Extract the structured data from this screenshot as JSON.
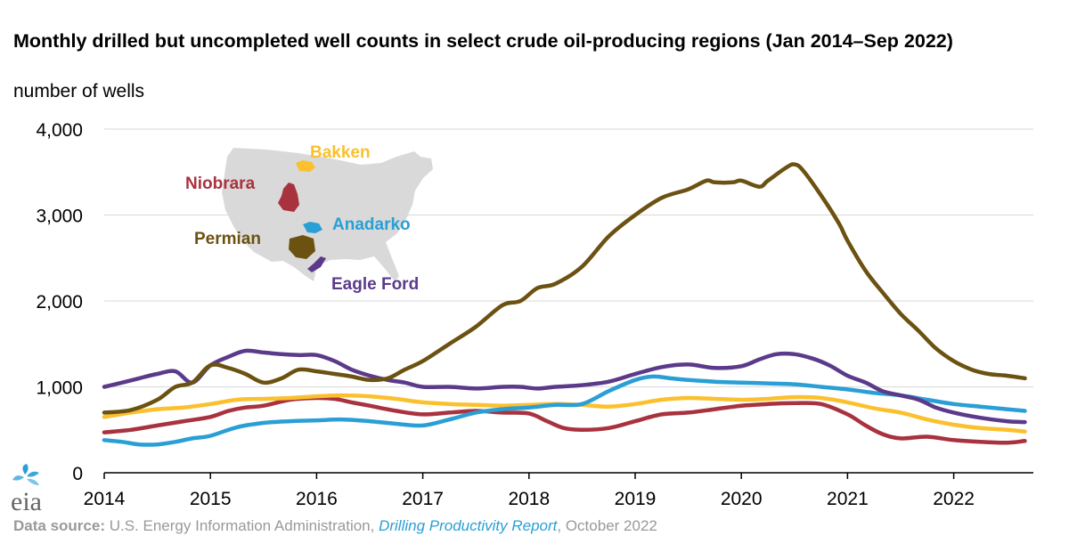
{
  "title": "Monthly drilled but uncompleted well counts in select crude oil-producing regions (Jan 2014–Sep 2022)",
  "unit_label": "number of wells",
  "source": {
    "label": "Data source:",
    "agency": "U.S. Energy Information Administration,",
    "report": "Drilling Productivity Report",
    "date": ", October 2022"
  },
  "logo_text": "eia",
  "colors": {
    "Permian": "#6b5211",
    "Eagle Ford": "#5b3a8a",
    "Bakken": "#fbc02d",
    "Anadarko": "#2a9fd6",
    "Niobrara": "#a8323e",
    "map_land": "#d9d9d9",
    "grid": "#d9d9d9"
  },
  "chart_data": {
    "type": "line",
    "title": "Monthly drilled but uncompleted well counts in select crude oil-producing regions (Jan 2014–Sep 2022)",
    "ylabel": "number of wells",
    "xlabel": "",
    "ylim": [
      0,
      4000
    ],
    "yticks": [
      0,
      1000,
      2000,
      3000,
      4000
    ],
    "ytick_labels": [
      "0",
      "1,000",
      "2,000",
      "3,000",
      "4,000"
    ],
    "xlim": [
      2014,
      2022.75
    ],
    "xticks": [
      2014,
      2015,
      2016,
      2017,
      2018,
      2019,
      2020,
      2021,
      2022
    ],
    "xtick_labels": [
      "2014",
      "2015",
      "2016",
      "2017",
      "2018",
      "2019",
      "2020",
      "2021",
      "2022"
    ],
    "grid": true,
    "legend": "inset map (top-left) with region labels",
    "series": [
      {
        "name": "Permian",
        "x": [
          2014.0,
          2014.25,
          2014.5,
          2014.67,
          2014.83,
          2015.0,
          2015.17,
          2015.33,
          2015.5,
          2015.67,
          2015.83,
          2016.0,
          2016.17,
          2016.33,
          2016.5,
          2016.67,
          2016.83,
          2017.0,
          2017.25,
          2017.5,
          2017.75,
          2017.92,
          2018.08,
          2018.25,
          2018.5,
          2018.75,
          2019.0,
          2019.25,
          2019.5,
          2019.67,
          2019.75,
          2019.92,
          2020.0,
          2020.17,
          2020.25,
          2020.42,
          2020.5,
          2020.58,
          2020.75,
          2020.92,
          2021.0,
          2021.17,
          2021.33,
          2021.5,
          2021.67,
          2021.83,
          2022.0,
          2022.17,
          2022.33,
          2022.5,
          2022.67
        ],
        "values": [
          700,
          730,
          850,
          1000,
          1050,
          1250,
          1220,
          1150,
          1050,
          1100,
          1200,
          1180,
          1150,
          1120,
          1080,
          1100,
          1200,
          1300,
          1500,
          1700,
          1950,
          2000,
          2150,
          2200,
          2400,
          2750,
          3000,
          3200,
          3300,
          3400,
          3380,
          3380,
          3400,
          3330,
          3400,
          3550,
          3590,
          3520,
          3230,
          2900,
          2700,
          2350,
          2100,
          1850,
          1650,
          1450,
          1300,
          1200,
          1150,
          1130,
          1100
        ]
      },
      {
        "name": "Eagle Ford",
        "x": [
          2014.0,
          2014.17,
          2014.33,
          2014.5,
          2014.67,
          2014.83,
          2015.0,
          2015.17,
          2015.33,
          2015.5,
          2015.67,
          2015.83,
          2016.0,
          2016.17,
          2016.33,
          2016.5,
          2016.67,
          2016.83,
          2017.0,
          2017.25,
          2017.5,
          2017.75,
          2017.92,
          2018.08,
          2018.25,
          2018.5,
          2018.75,
          2019.0,
          2019.25,
          2019.5,
          2019.75,
          2020.0,
          2020.17,
          2020.33,
          2020.5,
          2020.67,
          2020.83,
          2021.0,
          2021.17,
          2021.33,
          2021.5,
          2021.67,
          2021.83,
          2022.0,
          2022.25,
          2022.5,
          2022.67
        ],
        "values": [
          1000,
          1050,
          1100,
          1150,
          1180,
          1050,
          1250,
          1350,
          1420,
          1400,
          1380,
          1370,
          1370,
          1300,
          1200,
          1130,
          1080,
          1050,
          1000,
          1000,
          980,
          1000,
          1000,
          980,
          1000,
          1020,
          1060,
          1150,
          1230,
          1260,
          1220,
          1240,
          1320,
          1380,
          1380,
          1330,
          1250,
          1130,
          1050,
          950,
          900,
          850,
          760,
          700,
          640,
          600,
          590
        ]
      },
      {
        "name": "Bakken",
        "x": [
          2014.0,
          2014.25,
          2014.5,
          2014.75,
          2015.0,
          2015.25,
          2015.5,
          2015.75,
          2016.0,
          2016.25,
          2016.5,
          2016.75,
          2017.0,
          2017.25,
          2017.5,
          2017.75,
          2018.0,
          2018.25,
          2018.5,
          2018.75,
          2019.0,
          2019.25,
          2019.5,
          2019.75,
          2020.0,
          2020.25,
          2020.5,
          2020.75,
          2021.0,
          2021.25,
          2021.5,
          2021.75,
          2022.0,
          2022.25,
          2022.5,
          2022.67
        ],
        "values": [
          650,
          700,
          740,
          760,
          800,
          850,
          860,
          870,
          890,
          900,
          890,
          860,
          820,
          800,
          790,
          780,
          790,
          800,
          790,
          770,
          800,
          850,
          870,
          860,
          850,
          860,
          880,
          870,
          820,
          750,
          700,
          620,
          560,
          520,
          500,
          480
        ]
      },
      {
        "name": "Anadarko",
        "x": [
          2014.0,
          2014.17,
          2014.33,
          2014.5,
          2014.67,
          2014.83,
          2015.0,
          2015.25,
          2015.5,
          2015.75,
          2016.0,
          2016.25,
          2016.5,
          2016.75,
          2017.0,
          2017.25,
          2017.5,
          2017.75,
          2018.0,
          2018.25,
          2018.5,
          2018.75,
          2019.0,
          2019.17,
          2019.33,
          2019.5,
          2019.75,
          2020.0,
          2020.25,
          2020.5,
          2020.75,
          2021.0,
          2021.25,
          2021.5,
          2021.75,
          2022.0,
          2022.25,
          2022.5,
          2022.67
        ],
        "values": [
          380,
          360,
          330,
          330,
          360,
          400,
          430,
          530,
          580,
          600,
          610,
          620,
          600,
          570,
          550,
          620,
          700,
          740,
          760,
          790,
          800,
          950,
          1080,
          1120,
          1100,
          1080,
          1060,
          1050,
          1040,
          1030,
          1000,
          970,
          930,
          900,
          850,
          800,
          770,
          740,
          720
        ]
      },
      {
        "name": "Niobrara",
        "x": [
          2014.0,
          2014.25,
          2014.5,
          2014.75,
          2015.0,
          2015.17,
          2015.33,
          2015.5,
          2015.75,
          2016.0,
          2016.17,
          2016.33,
          2016.5,
          2016.75,
          2017.0,
          2017.25,
          2017.5,
          2017.75,
          2018.0,
          2018.17,
          2018.33,
          2018.5,
          2018.75,
          2019.0,
          2019.25,
          2019.5,
          2019.75,
          2020.0,
          2020.25,
          2020.5,
          2020.75,
          2021.0,
          2021.17,
          2021.33,
          2021.5,
          2021.75,
          2022.0,
          2022.25,
          2022.5,
          2022.67
        ],
        "values": [
          470,
          500,
          550,
          600,
          650,
          720,
          760,
          780,
          850,
          870,
          860,
          820,
          780,
          720,
          680,
          700,
          720,
          700,
          690,
          600,
          520,
          500,
          520,
          600,
          680,
          700,
          740,
          780,
          800,
          810,
          800,
          680,
          550,
          450,
          400,
          420,
          380,
          360,
          350,
          370
        ]
      }
    ]
  },
  "map_labels": [
    {
      "name": "Bakken",
      "text": "Bakken"
    },
    {
      "name": "Niobrara",
      "text": "Niobrara"
    },
    {
      "name": "Anadarko",
      "text": "Anadarko"
    },
    {
      "name": "Permian",
      "text": "Permian"
    },
    {
      "name": "Eagle Ford",
      "text": "Eagle Ford"
    }
  ]
}
